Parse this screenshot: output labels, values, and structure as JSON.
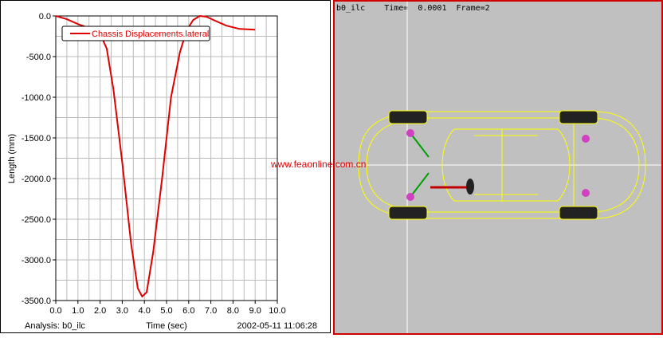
{
  "chart_data": {
    "type": "line",
    "xlabel": "Time (sec)",
    "ylabel": "Length (mm)",
    "xlim": [
      0,
      10
    ],
    "ylim": [
      -3500,
      0
    ],
    "xticks": [
      "0.0",
      "1.0",
      "2.0",
      "3.0",
      "4.0",
      "5.0",
      "6.0",
      "7.0",
      "8.0",
      "9.0",
      "10.0"
    ],
    "yticks": [
      "0.0",
      "-500.0",
      "-1000.0",
      "-1500.0",
      "-2000.0",
      "-2500.0",
      "-3000.0",
      "-3500.0"
    ],
    "grid": true,
    "legend_placement": "top-left",
    "series": [
      {
        "name": "Chassis Displacements.lateral",
        "color": "#e00000",
        "x": [
          0,
          0.5,
          1.0,
          1.5,
          2.0,
          2.3,
          2.6,
          3.0,
          3.4,
          3.7,
          3.9,
          4.1,
          4.4,
          4.8,
          5.2,
          5.6,
          5.9,
          6.2,
          6.5,
          6.8,
          7.2,
          7.7,
          8.3,
          9.0
        ],
        "y": [
          0,
          -40,
          -100,
          -150,
          -220,
          -400,
          -900,
          -1800,
          -2800,
          -3350,
          -3450,
          -3400,
          -2900,
          -2000,
          -1000,
          -450,
          -180,
          -50,
          0,
          -10,
          -60,
          -120,
          -160,
          -170
        ]
      }
    ]
  },
  "footer": {
    "analysis": "Analysis:  b0_ilc",
    "xlabel": "Time (sec)",
    "timestamp": "2002-05-11 11:06:28"
  },
  "viewport": {
    "hud": "b0_ilc    Time=  0.0001  Frame=2",
    "watermark": "www.feaonline.com.cn",
    "model_color": "#ffff00",
    "background": "#c0c0c0"
  }
}
